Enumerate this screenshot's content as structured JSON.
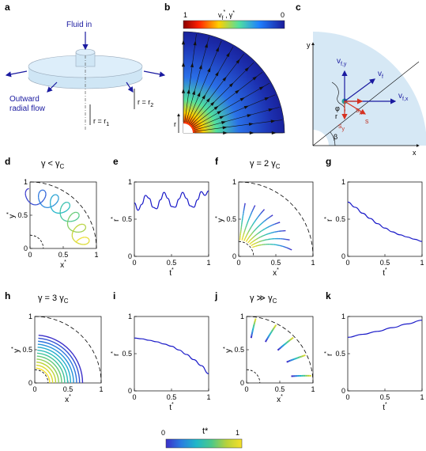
{
  "panel_labels": {
    "a": "a",
    "b": "b",
    "c": "c",
    "d": "d",
    "e": "e",
    "f": "f",
    "g": "g",
    "h": "h",
    "i": "i",
    "j": "j",
    "k": "k"
  },
  "schematic": {
    "fluid_in": "Fluid in",
    "outward_flow_1": "Outward",
    "outward_flow_2": "radial flow",
    "r2_label": "r = r",
    "r2_sub": "2",
    "r1_label": "r = r",
    "r1_sub": "1",
    "colors": {
      "disk": "#cfe6f5",
      "arrow": "#1a1aa0"
    }
  },
  "field": {
    "cbar_max": "1",
    "cbar_min": "0",
    "cbar_title": "v",
    "cbar_title_sub": "f",
    "cbar_title_sup": "*",
    "cbar_title_sep": ",",
    "cbar_title2": "γ",
    "cbar_title2_sup": "*",
    "r_axis": "r"
  },
  "geometry": {
    "y_axis": "y",
    "x_axis": "x",
    "beta": "β",
    "r": "r",
    "phi": "φ",
    "vf": "v",
    "vf_sub": "f",
    "vfx": "v",
    "vfx_sub": "f,x",
    "vfy": "v",
    "vfy_sub": "f,y",
    "s": "s",
    "sx": "s",
    "sx_sub": "x",
    "sy": "s",
    "sy_sub": "y",
    "colors": {
      "blue": "#1a1aa0",
      "red": "#d7301f",
      "sector": "#d6e8f5"
    }
  },
  "titles": {
    "d": "γ < γ",
    "d_sub": "C",
    "f": "γ = 2 γ",
    "f_sub": "C",
    "h": "γ = 3 γ",
    "h_sub": "C",
    "j": "γ ≫ γ",
    "j_sub": "C"
  },
  "axes": {
    "xstar": "x",
    "ystar": "y",
    "tstar": "t",
    "rstar": "r",
    "star": "*",
    "ticks": [
      "0",
      "0.5",
      "1"
    ]
  },
  "colorbar": {
    "title": "t*",
    "min": "0",
    "max": "1",
    "colors": [
      "#3b2fc9",
      "#2a7de0",
      "#1fb7c9",
      "#4cc88a",
      "#b8d23a",
      "#f5e02a"
    ]
  },
  "chart_data": [
    {
      "panel": "e",
      "type": "line",
      "xlabel": "t*",
      "ylabel": "r*",
      "xlim": [
        0,
        1
      ],
      "ylim": [
        0,
        1
      ],
      "x": [
        0,
        0.05,
        0.1,
        0.15,
        0.2,
        0.25,
        0.3,
        0.35,
        0.4,
        0.45,
        0.5,
        0.55,
        0.6,
        0.65,
        0.7,
        0.75,
        0.8,
        0.85,
        0.9,
        0.95,
        1
      ],
      "values": [
        0.72,
        0.62,
        0.7,
        0.82,
        0.78,
        0.66,
        0.64,
        0.76,
        0.86,
        0.78,
        0.67,
        0.66,
        0.77,
        0.86,
        0.78,
        0.68,
        0.66,
        0.76,
        0.87,
        0.82,
        0.88
      ]
    },
    {
      "panel": "g",
      "type": "line",
      "xlabel": "t*",
      "ylabel": "r*",
      "xlim": [
        0,
        1
      ],
      "ylim": [
        0,
        1
      ],
      "x": [
        0,
        0.1,
        0.2,
        0.3,
        0.4,
        0.5,
        0.6,
        0.7,
        0.8,
        0.9,
        1
      ],
      "values": [
        0.73,
        0.66,
        0.58,
        0.51,
        0.44,
        0.38,
        0.33,
        0.29,
        0.26,
        0.23,
        0.2
      ]
    },
    {
      "panel": "i",
      "type": "line",
      "xlabel": "t*",
      "ylabel": "r*",
      "xlim": [
        0,
        1
      ],
      "ylim": [
        0,
        1
      ],
      "x": [
        0,
        0.1,
        0.2,
        0.3,
        0.4,
        0.5,
        0.6,
        0.7,
        0.8,
        0.9,
        1
      ],
      "values": [
        0.71,
        0.7,
        0.68,
        0.66,
        0.63,
        0.6,
        0.55,
        0.49,
        0.42,
        0.34,
        0.23
      ]
    },
    {
      "panel": "k",
      "type": "line",
      "xlabel": "t*",
      "ylabel": "r*",
      "xlim": [
        0,
        1
      ],
      "ylim": [
        0,
        1
      ],
      "x": [
        0,
        0.2,
        0.4,
        0.6,
        0.8,
        1
      ],
      "values": [
        0.72,
        0.76,
        0.8,
        0.85,
        0.9,
        0.95
      ]
    }
  ]
}
